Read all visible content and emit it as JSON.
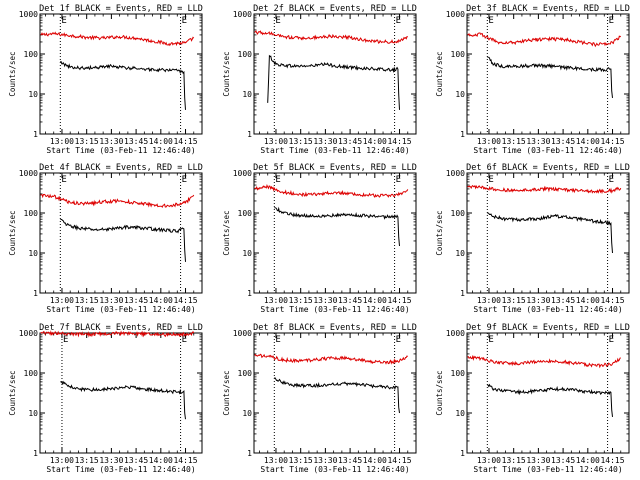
{
  "figure": {
    "common": {
      "ylabel": "Counts/sec",
      "xlabel": "Start Time (03-Feb-11 12:46:40)",
      "x_tick_labels": [
        "13:00",
        "13:15",
        "13:30",
        "13:45",
        "14:00",
        "14:15"
      ],
      "y_tick_labels": [
        "1",
        "10",
        "100",
        "1000"
      ],
      "marker_labels": [
        "E",
        "E"
      ]
    }
  },
  "chart_data": [
    {
      "type": "line",
      "title": "Det 1f BLACK = Events, RED = LLD",
      "yscale": "log",
      "ylim": [
        1,
        1000
      ],
      "x_range": [
        "12:46:40",
        "14:25"
      ],
      "markers": [
        "12:59",
        "14:12"
      ],
      "series": [
        {
          "name": "LLD",
          "color": "#dd0000",
          "t": [
            "12:47",
            "12:55",
            "13:05",
            "13:15",
            "13:25",
            "13:35",
            "13:45",
            "13:55",
            "14:05",
            "14:15",
            "14:20"
          ],
          "values": [
            300,
            320,
            290,
            260,
            250,
            270,
            250,
            210,
            180,
            190,
            250
          ]
        },
        {
          "name": "Events",
          "color": "#000000",
          "t": [
            "12:59",
            "13:03",
            "13:10",
            "13:20",
            "13:30",
            "13:40",
            "13:50",
            "14:00",
            "14:10",
            "14:14",
            "14:14:30",
            "14:15"
          ],
          "values": [
            65,
            50,
            45,
            45,
            50,
            45,
            42,
            40,
            38,
            35,
            8,
            4
          ]
        }
      ]
    },
    {
      "type": "line",
      "title": "Det 2f BLACK = Events, RED = LLD",
      "yscale": "log",
      "ylim": [
        1,
        1000
      ],
      "x_range": [
        "12:46:40",
        "14:25"
      ],
      "markers": [
        "12:59",
        "14:12"
      ],
      "series": [
        {
          "name": "LLD",
          "color": "#dd0000",
          "t": [
            "12:47",
            "12:55",
            "13:05",
            "13:15",
            "13:25",
            "13:35",
            "13:45",
            "13:55",
            "14:05",
            "14:15",
            "14:20"
          ],
          "values": [
            350,
            330,
            270,
            250,
            260,
            280,
            260,
            220,
            200,
            210,
            270
          ]
        },
        {
          "name": "Events",
          "color": "#000000",
          "t": [
            "12:55",
            "12:56",
            "13:00",
            "13:10",
            "13:20",
            "13:30",
            "13:40",
            "13:50",
            "14:00",
            "14:10",
            "14:14",
            "14:14:30",
            "14:15"
          ],
          "values": [
            6,
            90,
            55,
            50,
            50,
            55,
            48,
            45,
            42,
            40,
            42,
            10,
            4
          ]
        }
      ]
    },
    {
      "type": "line",
      "title": "Det 3f BLACK = Events, RED = LLD",
      "yscale": "log",
      "ylim": [
        1,
        1000
      ],
      "x_range": [
        "12:46:40",
        "14:25"
      ],
      "markers": [
        "12:59",
        "14:12"
      ],
      "series": [
        {
          "name": "LLD",
          "color": "#dd0000",
          "t": [
            "12:47",
            "12:55",
            "13:05",
            "13:15",
            "13:25",
            "13:35",
            "13:45",
            "13:55",
            "14:05",
            "14:15",
            "14:20"
          ],
          "values": [
            300,
            310,
            200,
            190,
            220,
            240,
            230,
            200,
            170,
            190,
            280
          ]
        },
        {
          "name": "Events",
          "color": "#000000",
          "t": [
            "12:59",
            "13:03",
            "13:10",
            "13:20",
            "13:30",
            "13:40",
            "13:50",
            "14:00",
            "14:10",
            "14:14",
            "14:14:30",
            "14:15"
          ],
          "values": [
            85,
            55,
            48,
            50,
            52,
            48,
            45,
            42,
            40,
            42,
            12,
            8
          ]
        }
      ]
    },
    {
      "type": "line",
      "title": "Det 4f BLACK = Events, RED = LLD",
      "yscale": "log",
      "ylim": [
        1,
        1000
      ],
      "x_range": [
        "12:46:40",
        "14:25"
      ],
      "markers": [
        "12:59",
        "14:12"
      ],
      "series": [
        {
          "name": "LLD",
          "color": "#dd0000",
          "t": [
            "12:47",
            "12:55",
            "13:05",
            "13:15",
            "13:25",
            "13:35",
            "13:45",
            "13:55",
            "14:05",
            "14:15",
            "14:20"
          ],
          "values": [
            280,
            260,
            180,
            170,
            190,
            200,
            180,
            160,
            150,
            180,
            280
          ]
        },
        {
          "name": "Events",
          "color": "#000000",
          "t": [
            "12:59",
            "13:03",
            "13:10",
            "13:20",
            "13:30",
            "13:40",
            "13:50",
            "14:00",
            "14:10",
            "14:14",
            "14:14:30",
            "14:15"
          ],
          "values": [
            70,
            50,
            42,
            38,
            40,
            45,
            42,
            38,
            35,
            40,
            12,
            6
          ]
        }
      ]
    },
    {
      "type": "line",
      "title": "Det 5f BLACK = Events, RED = LLD",
      "yscale": "log",
      "ylim": [
        1,
        1000
      ],
      "x_range": [
        "12:46:40",
        "14:25"
      ],
      "markers": [
        "12:59",
        "14:12"
      ],
      "series": [
        {
          "name": "LLD",
          "color": "#dd0000",
          "t": [
            "12:47",
            "12:55",
            "13:05",
            "13:15",
            "13:25",
            "13:35",
            "13:45",
            "13:55",
            "14:05",
            "14:15",
            "14:20"
          ],
          "values": [
            400,
            450,
            330,
            290,
            300,
            320,
            310,
            280,
            270,
            290,
            390
          ]
        },
        {
          "name": "Events",
          "color": "#000000",
          "t": [
            "12:59",
            "13:03",
            "13:10",
            "13:20",
            "13:30",
            "13:40",
            "13:50",
            "14:00",
            "14:10",
            "14:14",
            "14:14:30",
            "14:15"
          ],
          "values": [
            135,
            110,
            90,
            85,
            85,
            90,
            88,
            82,
            80,
            80,
            25,
            15
          ]
        }
      ]
    },
    {
      "type": "line",
      "title": "Det 6f BLACK = Events, RED = LLD",
      "yscale": "log",
      "ylim": [
        1,
        1000
      ],
      "x_range": [
        "12:46:40",
        "14:25"
      ],
      "markers": [
        "12:59",
        "14:12"
      ],
      "series": [
        {
          "name": "LLD",
          "color": "#dd0000",
          "t": [
            "12:47",
            "12:55",
            "13:05",
            "13:15",
            "13:25",
            "13:35",
            "13:45",
            "13:55",
            "14:05",
            "14:15",
            "14:20"
          ],
          "values": [
            450,
            440,
            390,
            360,
            380,
            400,
            380,
            360,
            350,
            360,
            420
          ]
        },
        {
          "name": "Events",
          "color": "#000000",
          "t": [
            "12:59",
            "13:03",
            "13:10",
            "13:20",
            "13:30",
            "13:40",
            "13:50",
            "14:00",
            "14:10",
            "14:14",
            "14:14:30",
            "14:15"
          ],
          "values": [
            100,
            80,
            70,
            68,
            72,
            85,
            75,
            65,
            58,
            55,
            18,
            10
          ]
        }
      ]
    },
    {
      "type": "line",
      "title": "Det 7f BLACK = Events, RED = LLD",
      "yscale": "log",
      "ylim": [
        1,
        1000
      ],
      "x_range": [
        "12:46:40",
        "14:25"
      ],
      "markers": [
        "13:00",
        "14:12"
      ],
      "series": [
        {
          "name": "LLD",
          "color": "#dd0000",
          "t": [
            "12:47",
            "12:55",
            "13:05",
            "13:15",
            "13:25",
            "13:35",
            "13:45",
            "13:55",
            "14:05",
            "14:15",
            "14:20"
          ],
          "values": [
            1000,
            1000,
            950,
            920,
            950,
            980,
            950,
            920,
            900,
            930,
            1000
          ]
        },
        {
          "name": "Events",
          "color": "#000000",
          "t": [
            "12:59",
            "13:03",
            "13:10",
            "13:20",
            "13:30",
            "13:40",
            "13:50",
            "14:00",
            "14:10",
            "14:14",
            "14:14:30",
            "14:15"
          ],
          "values": [
            60,
            50,
            40,
            38,
            40,
            45,
            40,
            36,
            33,
            35,
            10,
            7
          ]
        }
      ]
    },
    {
      "type": "line",
      "title": "Det 8f BLACK = Events, RED = LLD",
      "yscale": "log",
      "ylim": [
        1,
        1000
      ],
      "x_range": [
        "12:46:40",
        "14:25"
      ],
      "markers": [
        "12:59",
        "14:12"
      ],
      "series": [
        {
          "name": "LLD",
          "color": "#dd0000",
          "t": [
            "12:47",
            "12:55",
            "13:05",
            "13:15",
            "13:25",
            "13:35",
            "13:45",
            "13:55",
            "14:05",
            "14:15",
            "14:20"
          ],
          "values": [
            280,
            260,
            210,
            200,
            220,
            240,
            230,
            200,
            180,
            200,
            260
          ]
        },
        {
          "name": "Events",
          "color": "#000000",
          "t": [
            "12:59",
            "13:03",
            "13:10",
            "13:20",
            "13:30",
            "13:40",
            "13:50",
            "14:00",
            "14:10",
            "14:14",
            "14:14:30",
            "14:15"
          ],
          "values": [
            75,
            60,
            50,
            48,
            50,
            55,
            52,
            46,
            43,
            45,
            14,
            10
          ]
        }
      ]
    },
    {
      "type": "line",
      "title": "Det 9f BLACK = Events, RED = LLD",
      "yscale": "log",
      "ylim": [
        1,
        1000
      ],
      "x_range": [
        "12:46:40",
        "14:25"
      ],
      "markers": [
        "12:59",
        "14:12"
      ],
      "series": [
        {
          "name": "LLD",
          "color": "#dd0000",
          "t": [
            "12:47",
            "12:55",
            "13:05",
            "13:15",
            "13:25",
            "13:35",
            "13:45",
            "13:55",
            "14:05",
            "14:15",
            "14:20"
          ],
          "values": [
            250,
            230,
            180,
            170,
            185,
            200,
            190,
            170,
            150,
            170,
            240
          ]
        },
        {
          "name": "Events",
          "color": "#000000",
          "t": [
            "12:59",
            "13:03",
            "13:10",
            "13:20",
            "13:30",
            "13:40",
            "13:50",
            "14:00",
            "14:10",
            "14:14",
            "14:14:30",
            "14:15"
          ],
          "values": [
            50,
            40,
            35,
            33,
            36,
            40,
            38,
            34,
            32,
            33,
            12,
            8
          ]
        }
      ]
    }
  ]
}
